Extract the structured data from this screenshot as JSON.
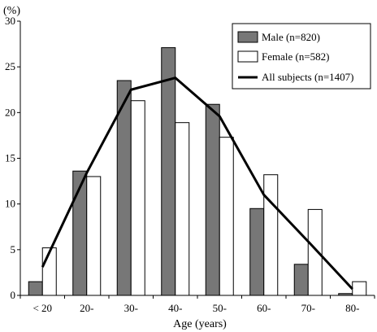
{
  "chart_data": {
    "type": "bar",
    "ylabel": "(%)",
    "xlabel": "Age (years)",
    "ylim": [
      0,
      30
    ],
    "yticks": [
      "0",
      "5",
      "10",
      "15",
      "20",
      "25",
      "30"
    ],
    "categories": [
      "< 20",
      "20-",
      "30-",
      "40-",
      "50-",
      "60-",
      "70-",
      "80-"
    ],
    "series": [
      {
        "name": "Male (n=820)",
        "kind": "bar",
        "color": "#777777",
        "values": [
          1.5,
          13.6,
          23.5,
          27.1,
          20.9,
          9.5,
          3.4,
          0.2
        ]
      },
      {
        "name": "Female (n=582)",
        "kind": "bar",
        "color": "#ffffff",
        "values": [
          5.2,
          13.0,
          21.3,
          18.9,
          17.3,
          13.2,
          9.4,
          1.5
        ]
      },
      {
        "name": "All subjects (n=1407)",
        "kind": "line",
        "color": "#000000",
        "values": [
          3.1,
          13.4,
          22.5,
          23.8,
          19.6,
          11.0,
          5.9,
          0.7
        ]
      }
    ],
    "legend_position": "top-right",
    "grid": false
  }
}
